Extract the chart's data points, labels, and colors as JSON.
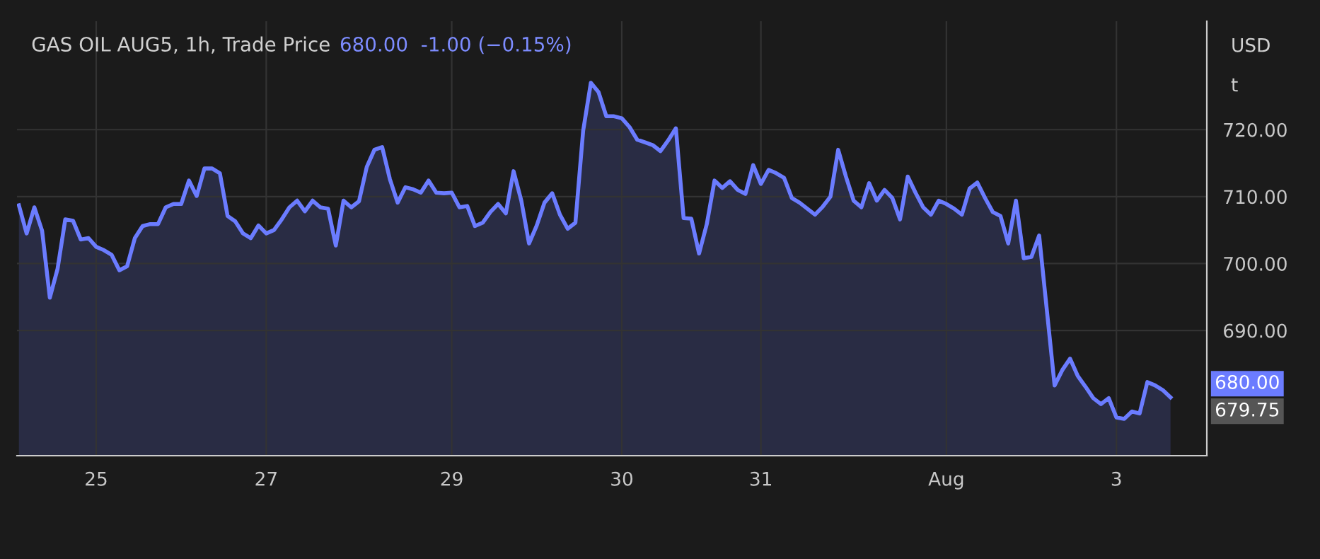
{
  "chart_data": {
    "type": "area",
    "title": "GAS OIL AUG5, 1h, Trade Price",
    "subtitle": "680.00  -1.00 (−0.15%)",
    "categories": [
      null,
      null,
      null,
      null,
      null,
      null,
      null,
      null,
      null,
      null,
      "25",
      null,
      null,
      null,
      null,
      null,
      null,
      null,
      null,
      null,
      null,
      null,
      null,
      null,
      null,
      null,
      null,
      null,
      null,
      null,
      null,
      null,
      "27",
      null,
      null,
      null,
      null,
      null,
      null,
      null,
      null,
      null,
      null,
      null,
      null,
      null,
      null,
      null,
      null,
      null,
      null,
      null,
      null,
      null,
      null,
      null,
      "29",
      null,
      null,
      null,
      null,
      null,
      null,
      null,
      null,
      null,
      null,
      null,
      null,
      null,
      null,
      null,
      null,
      null,
      null,
      null,
      null,
      null,
      "30",
      null,
      null,
      null,
      null,
      null,
      null,
      null,
      null,
      null,
      null,
      null,
      null,
      null,
      null,
      null,
      null,
      null,
      "31",
      null,
      null,
      null,
      null,
      null,
      null,
      null,
      null,
      null,
      null,
      null,
      null,
      null,
      null,
      null,
      null,
      null,
      null,
      null,
      null,
      null,
      null,
      null,
      "Aug",
      null,
      null,
      null,
      null,
      null,
      null,
      null,
      null,
      null,
      null,
      null,
      null,
      null,
      null,
      null,
      null,
      null,
      null,
      null,
      null,
      null,
      "3",
      null,
      null,
      null,
      null,
      null,
      null,
      null
    ],
    "series": [
      {
        "color": "#6b7cff",
        "values": [
          708.7,
          704.5,
          708.4,
          704.9,
          694.9,
          699.2,
          706.6,
          706.4,
          703.6,
          703.8,
          702.5,
          702.0,
          701.3,
          699.0,
          699.6,
          703.8,
          705.6,
          705.9,
          705.9,
          708.4,
          708.9,
          708.9,
          712.4,
          710.1,
          714.2,
          714.2,
          713.5,
          707.1,
          706.3,
          704.5,
          703.8,
          705.7,
          704.5,
          705.0,
          706.6,
          708.4,
          709.4,
          707.8,
          709.4,
          708.4,
          708.2,
          702.7,
          709.4,
          708.4,
          709.3,
          714.4,
          717.0,
          717.4,
          712.6,
          709.1,
          711.4,
          711.1,
          710.6,
          712.4,
          710.6,
          710.5,
          710.6,
          708.4,
          708.6,
          705.6,
          706.1,
          707.7,
          708.9,
          707.5,
          713.8,
          709.4,
          703.0,
          705.7,
          709.1,
          710.5,
          707.3,
          705.2,
          706.1,
          719.8,
          727.0,
          725.6,
          722.0,
          722.0,
          721.7,
          720.4,
          718.5,
          718.1,
          717.7,
          716.8,
          718.4,
          720.2,
          706.8,
          706.7,
          701.5,
          705.9,
          712.4,
          711.3,
          712.3,
          711.0,
          710.4,
          714.7,
          711.9,
          714.0,
          713.5,
          712.8,
          709.8,
          709.1,
          708.2,
          707.3,
          708.5,
          710.0,
          717.0,
          713.0,
          709.4,
          708.4,
          712.0,
          709.4,
          711.0,
          709.8,
          706.6,
          713.0,
          710.6,
          708.4,
          707.3,
          709.4,
          708.9,
          708.2,
          707.3,
          711.2,
          712.1,
          709.8,
          707.7,
          707.1,
          703.0,
          709.4,
          700.8,
          701.0,
          704.2,
          693.0,
          681.8,
          684.1,
          685.8,
          683.2,
          681.6,
          679.9,
          679.0,
          679.9,
          677.0,
          676.8,
          677.9,
          677.6,
          682.3,
          681.8,
          681.1,
          680.0
        ]
      }
    ],
    "ylim": [
      671.3,
      736.2
    ],
    "yticks": [
      {
        "value": 690,
        "label": "690.00"
      },
      {
        "value": 700,
        "label": "700.00"
      },
      {
        "value": 710,
        "label": "710.00"
      },
      {
        "value": 720,
        "label": "720.00"
      }
    ],
    "grid": true,
    "annotations": [
      "680.00",
      "679.75",
      "USD",
      "t"
    ]
  }
}
